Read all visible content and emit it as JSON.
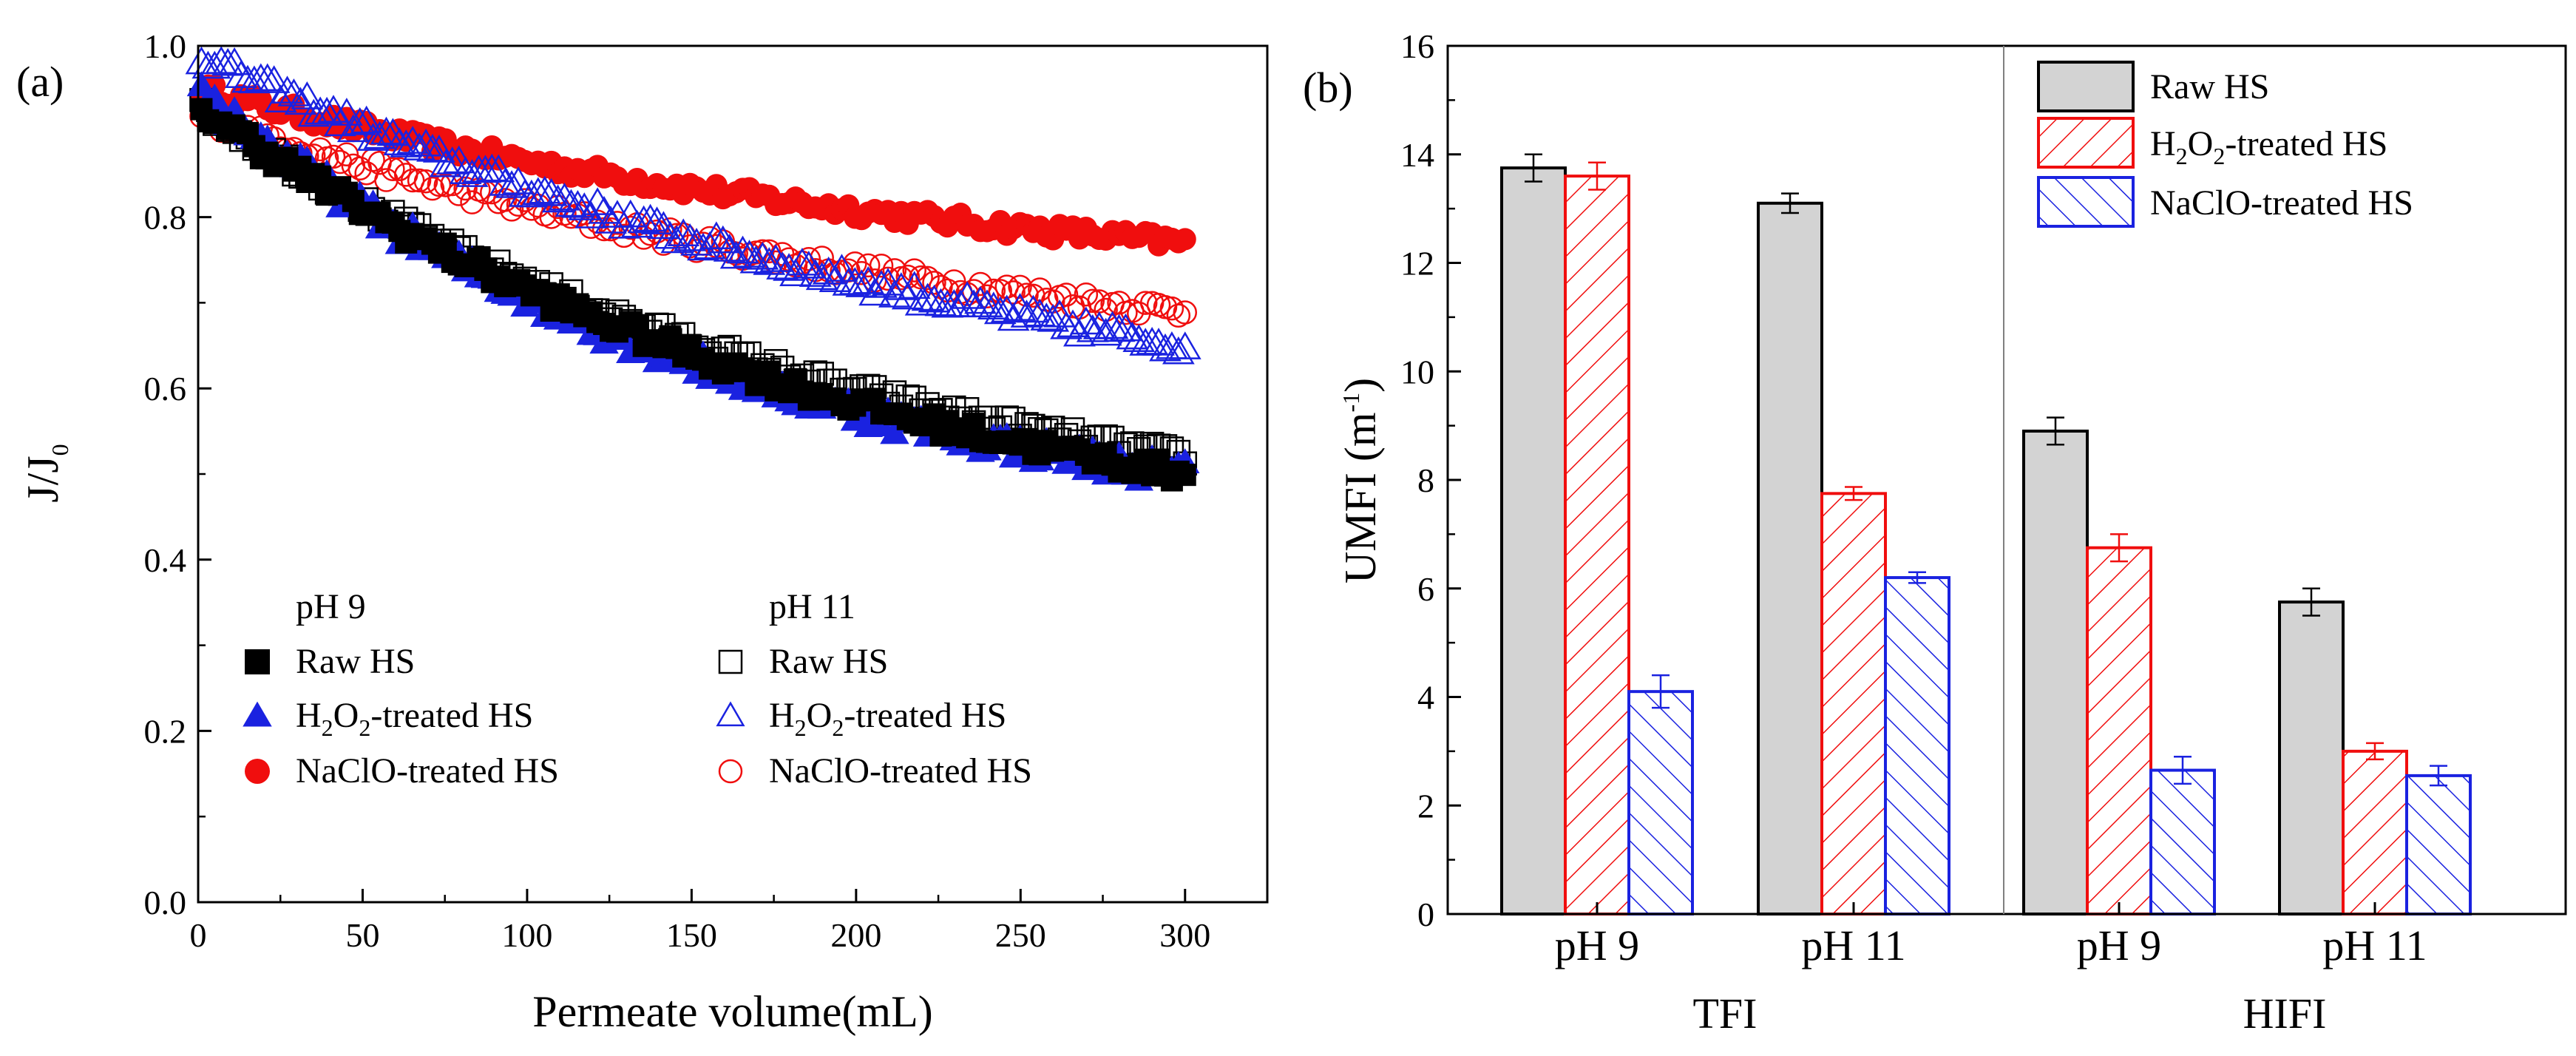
{
  "chart_data": [
    {
      "panel_label": "(a)",
      "type": "scatter",
      "xlabel": "Permeate volume(mL)",
      "ylabel_main": "J/J",
      "ylabel_sub": "0",
      "xlim": [
        0,
        325
      ],
      "ylim": [
        0,
        1.0
      ],
      "xticks": [
        0,
        50,
        100,
        150,
        200,
        250,
        300
      ],
      "yticks": [
        0.0,
        0.2,
        0.4,
        0.6,
        0.8,
        1.0
      ],
      "ytick_labels": [
        "0.0",
        "0.2",
        "0.4",
        "0.6",
        "0.8",
        "1.0"
      ],
      "legend_groups": [
        {
          "title": "pH 9",
          "filled": true
        },
        {
          "title": "pH 11",
          "filled": false
        }
      ],
      "series": [
        {
          "name": "Raw HS",
          "label_main": "Raw HS",
          "label_sub": "",
          "label_rest": "",
          "group": "pH 9",
          "marker": "square",
          "filled": true,
          "color": "#000000",
          "start": 0.93,
          "end": 0.5,
          "k": 1.45,
          "noise": 0.012
        },
        {
          "name": "H2O2-treated HS",
          "label_main": "H",
          "label_sub": "2",
          "label_mid": "O",
          "label_sub2": "2",
          "label_rest": "-treated  HS",
          "group": "pH 9",
          "marker": "triangle",
          "filled": true,
          "color": "#1a22e0",
          "start": 0.95,
          "end": 0.5,
          "k": 1.8,
          "noise": 0.015
        },
        {
          "name": "NaClO-treated HS",
          "label_main": "NaClO-treated HS",
          "label_sub": "",
          "label_rest": "",
          "group": "pH 9",
          "marker": "circle",
          "filled": true,
          "color": "#f00e0e",
          "start": 0.95,
          "end": 0.77,
          "k": 1.2,
          "noise": 0.01
        },
        {
          "name": "Raw HS",
          "label_main": "Raw HS",
          "label_sub": "",
          "label_rest": "",
          "group": "pH 11",
          "marker": "square",
          "filled": false,
          "color": "#000000",
          "start": 0.93,
          "end": 0.52,
          "k": 1.45,
          "noise": 0.01
        },
        {
          "name": "H2O2-treated HS",
          "label_main": "H",
          "label_sub": "2",
          "label_mid": "O",
          "label_sub2": "2",
          "label_rest": "-treated  HS",
          "group": "pH 11",
          "marker": "triangle",
          "filled": false,
          "color": "#1a22e0",
          "start": 0.99,
          "end": 0.65,
          "k": 1.1,
          "noise": 0.01
        },
        {
          "name": "NaClO-treated HS",
          "label_main": "NaClO-treated  HS",
          "label_sub": "",
          "label_rest": "",
          "group": "pH 11",
          "marker": "circle",
          "filled": false,
          "color": "#f00e0e",
          "start": 0.92,
          "end": 0.69,
          "k": 1.2,
          "noise": 0.01
        }
      ]
    },
    {
      "panel_label": "(b)",
      "type": "bar",
      "ylabel_main": "UMFI (m",
      "ylabel_sup": "-1",
      "ylabel_end": ")",
      "ylim": [
        0,
        16
      ],
      "yticks": [
        0,
        2,
        4,
        6,
        8,
        10,
        12,
        14,
        16
      ],
      "groups": [
        "TFI",
        "HIFI"
      ],
      "categories": [
        "pH 9",
        "pH 11",
        "pH 9",
        "pH 11"
      ],
      "series": [
        {
          "name": "Raw HS",
          "label_main": "Raw HS",
          "label_sub": "",
          "label_mid": "",
          "label_sub2": "",
          "label_rest": "",
          "color": "#000000",
          "fill": "#d3d3d3",
          "pattern": "solid",
          "values": [
            13.75,
            13.1,
            8.9,
            5.75
          ],
          "errors": [
            0.25,
            0.18,
            0.25,
            0.25
          ]
        },
        {
          "name": "H2O2-treated HS",
          "label_main": "H",
          "label_sub": "2",
          "label_mid": "O",
          "label_sub2": "2",
          "label_rest": "-treated HS",
          "color": "#f00e0e",
          "fill": "none",
          "pattern": "hatch-fwd",
          "values": [
            13.6,
            7.75,
            6.75,
            3.0
          ],
          "errors": [
            0.25,
            0.12,
            0.25,
            0.15
          ]
        },
        {
          "name": "NaClO-treated HS",
          "label_main": "NaClO-treated HS",
          "label_sub": "",
          "label_mid": "",
          "label_sub2": "",
          "label_rest": "",
          "color": "#1a22e0",
          "fill": "none",
          "pattern": "hatch-back",
          "values": [
            4.1,
            6.2,
            2.65,
            2.55
          ],
          "errors": [
            0.3,
            0.1,
            0.25,
            0.18
          ]
        }
      ]
    }
  ]
}
